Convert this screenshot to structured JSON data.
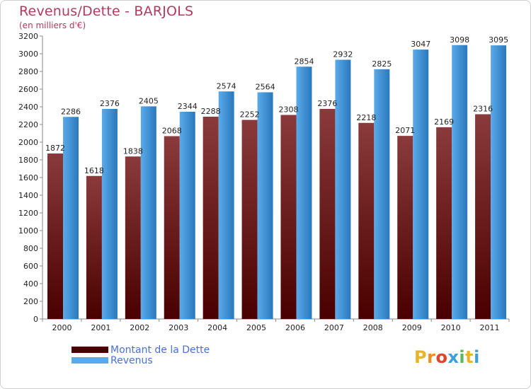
{
  "title": "Revenus/Dette - BARJOLS",
  "subtitle": "(en milliers d'€)",
  "legend": {
    "dette_label": "Montant de la Dette",
    "revenus_label": "Revenus"
  },
  "brand": {
    "name": "Proxiti"
  },
  "colors": {
    "dette_top": "#8a3a3a",
    "dette_bottom": "#4a0000",
    "revenus_top": "#5aaaea",
    "revenus_bottom": "#2a78bc",
    "title": "#b23a5e",
    "legend_text": "#4a6fd8"
  },
  "chart_data": {
    "type": "bar",
    "title": "Revenus/Dette - BARJOLS",
    "ylabel": "(en milliers d'€)",
    "xlabel": "",
    "categories": [
      "2000",
      "2001",
      "2002",
      "2003",
      "2004",
      "2005",
      "2006",
      "2007",
      "2008",
      "2009",
      "2010",
      "2011"
    ],
    "series": [
      {
        "name": "Montant de la Dette",
        "values": [
          1872,
          1618,
          1838,
          2068,
          2288,
          2252,
          2308,
          2376,
          2218,
          2071,
          2169,
          2316
        ]
      },
      {
        "name": "Revenus",
        "values": [
          2286,
          2376,
          2405,
          2344,
          2574,
          2564,
          2854,
          2932,
          2825,
          3047,
          3098,
          3095
        ]
      }
    ],
    "ylim": [
      0,
      3200
    ],
    "yticks": [
      0,
      200,
      400,
      600,
      800,
      1000,
      1200,
      1400,
      1600,
      1800,
      2000,
      2200,
      2400,
      2600,
      2800,
      3000,
      3200
    ],
    "legend_position": "bottom-left"
  }
}
